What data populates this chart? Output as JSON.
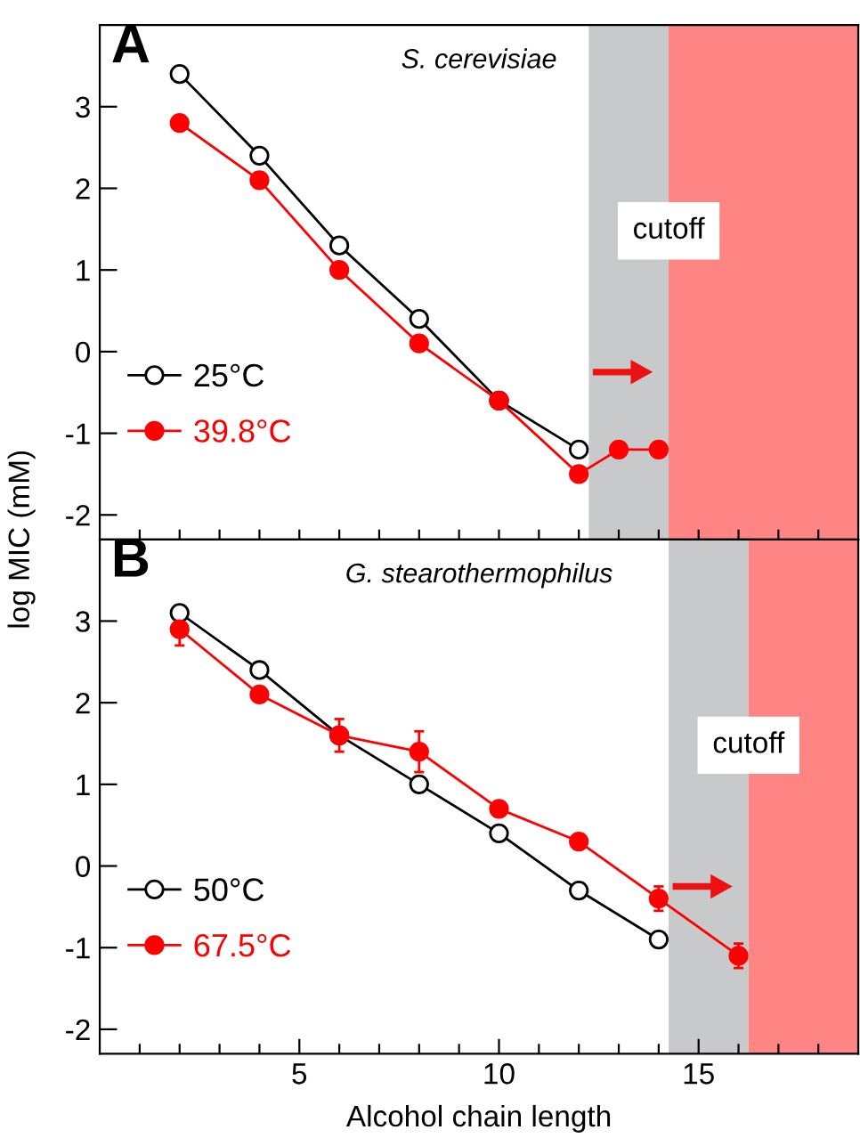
{
  "chart_data": [
    {
      "type": "line",
      "title": "S. cerevisiae",
      "ylabel": "log MIC (mM)",
      "annotations": [
        "A",
        "cutoff"
      ],
      "xlim": [
        0,
        19
      ],
      "xticks": [
        {
          "value": 1,
          "label": null
        },
        {
          "value": 2,
          "label": null
        },
        {
          "value": 3,
          "label": null
        },
        {
          "value": 4,
          "label": null
        },
        {
          "value": 5,
          "label": null
        },
        {
          "value": 6,
          "label": null
        },
        {
          "value": 7,
          "label": null
        },
        {
          "value": 8,
          "label": null
        },
        {
          "value": 9,
          "label": null
        },
        {
          "value": 10,
          "label": null
        },
        {
          "value": 11,
          "label": null
        },
        {
          "value": 12,
          "label": null
        },
        {
          "value": 13,
          "label": null
        },
        {
          "value": 14,
          "label": null
        },
        {
          "value": 15,
          "label": null
        },
        {
          "value": 16,
          "label": null
        },
        {
          "value": 17,
          "label": null
        },
        {
          "value": 18,
          "label": null
        }
      ],
      "ylim": [
        -2.3,
        4.0
      ],
      "yticks": [
        -2,
        -1,
        0,
        1,
        2,
        3
      ],
      "tick_labels": "y",
      "legend": "bottom left",
      "grid": false,
      "bands": [
        {
          "axis": "x",
          "from": 12.25,
          "to": 14.25,
          "color": "#c8c9cb"
        },
        {
          "axis": "x",
          "from": 14.25,
          "to": 19,
          "color": "#ff8585"
        }
      ],
      "series": [
        {
          "name": "25°C",
          "color": "#000000",
          "marker": "circle",
          "x": [
            2,
            4,
            6,
            8,
            10,
            12
          ],
          "values": [
            3.4,
            2.4,
            1.3,
            0.4,
            -0.6,
            -1.2
          ]
        },
        {
          "name": "39.8°C",
          "color": "#ff0000",
          "marker": "circle",
          "x": [
            2,
            4,
            6,
            8,
            10,
            12,
            13,
            14
          ],
          "values": [
            2.8,
            2.1,
            1.0,
            0.1,
            -0.6,
            -1.5,
            -1.2,
            -1.2
          ]
        }
      ]
    },
    {
      "type": "line",
      "title": "G. stearothermophilus",
      "xlabel": "Alcohol chain length",
      "annotations": [
        "B",
        "cutoff"
      ],
      "xlim": [
        0,
        19
      ],
      "xticks": [
        {
          "value": 1,
          "label": null
        },
        {
          "value": 2,
          "label": null
        },
        {
          "value": 3,
          "label": null
        },
        {
          "value": 4,
          "label": null
        },
        5,
        {
          "value": 6,
          "label": null
        },
        {
          "value": 7,
          "label": null
        },
        {
          "value": 8,
          "label": null
        },
        {
          "value": 9,
          "label": null
        },
        10,
        {
          "value": 11,
          "label": null
        },
        {
          "value": 12,
          "label": null
        },
        {
          "value": 13,
          "label": null
        },
        {
          "value": 14,
          "label": null
        },
        15,
        {
          "value": 16,
          "label": null
        },
        {
          "value": 17,
          "label": null
        },
        {
          "value": 18,
          "label": null
        }
      ],
      "ylim": [
        -2.3,
        4.0
      ],
      "yticks": [
        -2,
        -1,
        0,
        1,
        2,
        3
      ],
      "legend": "bottom left",
      "grid": false,
      "bands": [
        {
          "axis": "x",
          "from": 14.25,
          "to": 16.25,
          "color": "#c8c9cb"
        },
        {
          "axis": "x",
          "from": 16.25,
          "to": 19,
          "color": "#ff8585"
        }
      ],
      "series": [
        {
          "name": "50°C",
          "color": "#000000",
          "marker": "circle",
          "x": [
            2,
            4,
            6,
            8,
            10,
            12,
            14
          ],
          "values": [
            3.1,
            2.4,
            1.6,
            1.0,
            0.4,
            -0.3,
            -0.9
          ]
        },
        {
          "name": "67.5°C",
          "color": "#ff0000",
          "marker": "circle",
          "x": [
            2,
            4,
            6,
            8,
            10,
            12,
            14,
            16
          ],
          "values": [
            2.9,
            2.1,
            1.6,
            1.4,
            0.7,
            0.3,
            -0.4,
            -1.1
          ],
          "errors": [
            0.2,
            null,
            0.2,
            0.25,
            null,
            null,
            0.15,
            0.15
          ]
        }
      ]
    }
  ]
}
